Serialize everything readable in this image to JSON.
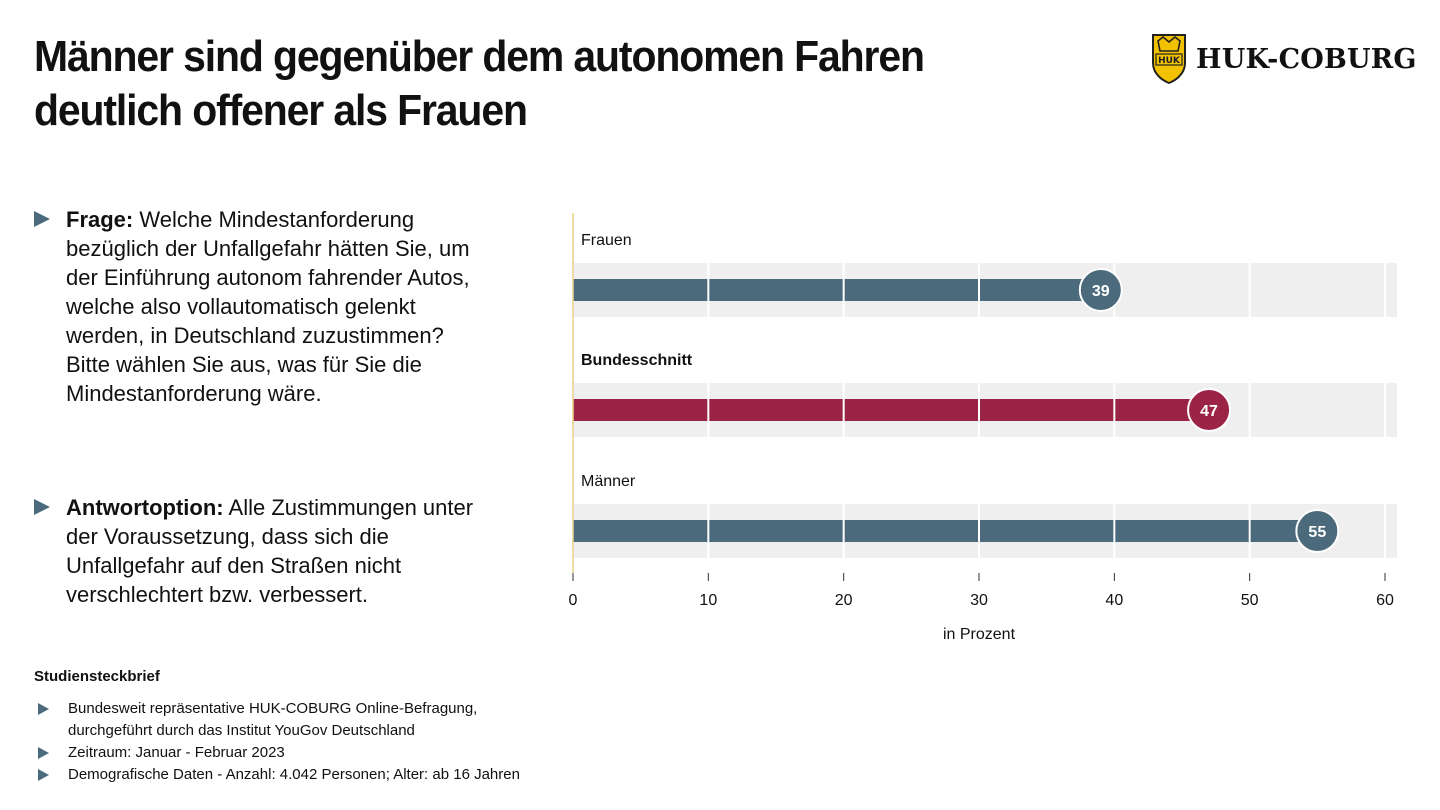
{
  "header": {
    "title_line1": "Männer sind gegenüber dem autonomen Fahren",
    "title_line2": "deutlich offener als Frauen",
    "brand": "HUK-COBURG",
    "logo_emblem_text": "HUK"
  },
  "question": {
    "label": "Frage:",
    "text": "Welche Mindestanforderung bezüglich der Unfallgefahr hätten Sie, um der Einführung autonom fahrender Autos, welche also vollautomatisch gelenkt werden, in Deutschland zuzustimmen?",
    "instruction": "Bitte wählen Sie aus, was für Sie die Mindestanforderung wäre."
  },
  "answer": {
    "label": "Antwortoption:",
    "text": "Alle Zustimmungen unter der Voraussetzung, dass sich die Unfallgefahr auf den Straßen nicht verschlechtert bzw. verbessert."
  },
  "chart_data": {
    "type": "bar",
    "orientation": "horizontal",
    "categories": [
      "Frauen",
      "Bundesschnitt",
      "Männer"
    ],
    "values": [
      39,
      47,
      55
    ],
    "value_labels": [
      "39",
      "47",
      "55"
    ],
    "bold_category": "Bundesschnitt",
    "xlabel": "in Prozent",
    "xlim": [
      0,
      60
    ],
    "xticks": [
      0,
      10,
      20,
      30,
      40,
      50,
      60
    ],
    "xtick_labels": [
      "0",
      "10",
      "20",
      "30",
      "40",
      "50",
      "60"
    ],
    "grid": true,
    "colors": {
      "default_bar": "#4b6b7c",
      "highlight_bar": "#9b2446",
      "track": "#efefef",
      "zero_line": "#e8d28a"
    }
  },
  "study": {
    "title": "Studiensteckbrief",
    "items": [
      {
        "line1": "Bundesweit repräsentative HUK-COBURG Online-Befragung,",
        "line2": "durchgeführt durch das Institut YouGov Deutschland"
      },
      {
        "line1": "Zeitraum: Januar - Februar 2023",
        "line2": ""
      },
      {
        "line1": "Demografische Daten - Anzahl: 4.042 Personen; Alter: ab 16 Jahren",
        "line2": ""
      }
    ]
  }
}
